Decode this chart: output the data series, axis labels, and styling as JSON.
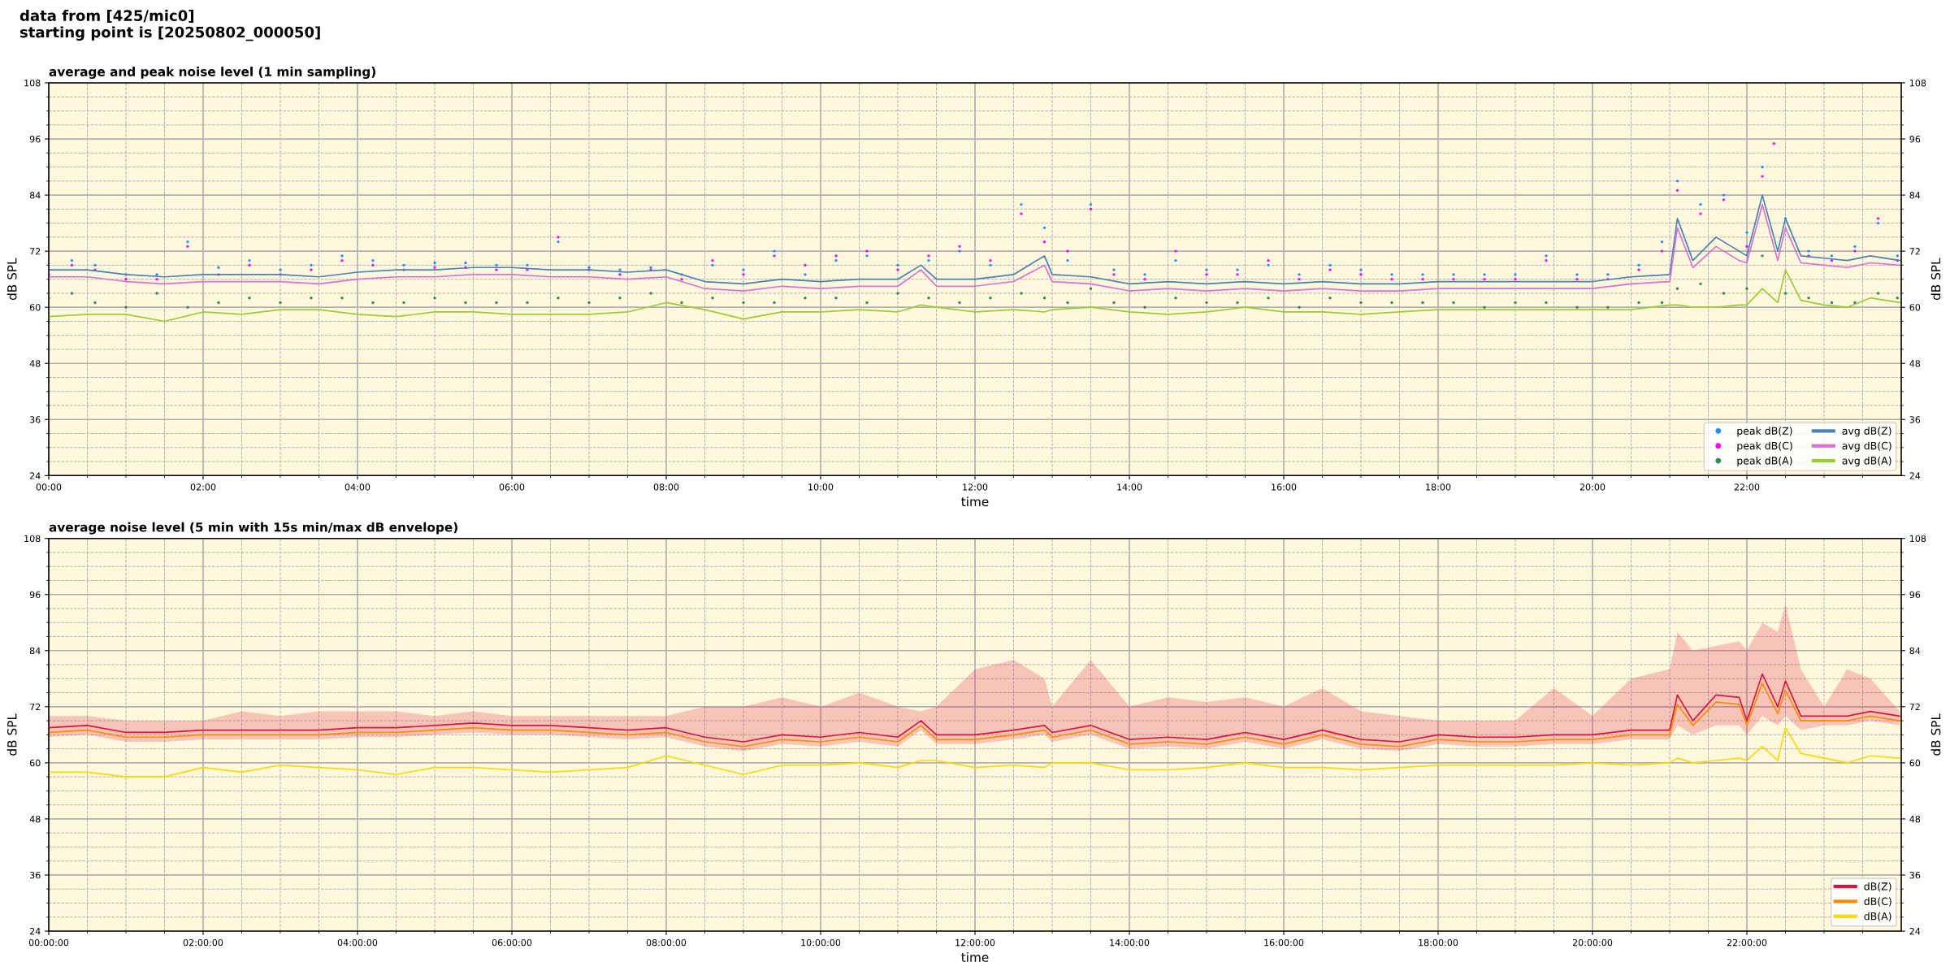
{
  "chart_data": [
    {
      "type": "line",
      "title": "average and peak noise level (1 min sampling)",
      "annotations": [
        "data from [425/mic0]",
        "starting point is [20250802_000050]"
      ],
      "xlabel": "time",
      "ylabel": "dB SPL",
      "y2label": "dB SPL",
      "grid": true,
      "legend": "bottom right",
      "xlim": [
        0,
        24
      ],
      "ylim": [
        24,
        108
      ],
      "y2lim": [
        24,
        108
      ],
      "xticks": [
        {
          "value": 0,
          "label": "00:00"
        },
        {
          "value": 2,
          "label": "02:00"
        },
        {
          "value": 4,
          "label": "04:00"
        },
        {
          "value": 6,
          "label": "06:00"
        },
        {
          "value": 8,
          "label": "08:00"
        },
        {
          "value": 10,
          "label": "10:00"
        },
        {
          "value": 12,
          "label": "12:00"
        },
        {
          "value": 14,
          "label": "14:00"
        },
        {
          "value": 16,
          "label": "16:00"
        },
        {
          "value": 18,
          "label": "18:00"
        },
        {
          "value": 20,
          "label": "20:00"
        },
        {
          "value": 22,
          "label": "22:00"
        },
        {
          "value": 0.5,
          "label": null
        },
        {
          "value": 1,
          "label": null
        },
        {
          "value": 1.5,
          "label": null
        },
        {
          "value": 2.5,
          "label": null
        },
        {
          "value": 3,
          "label": null
        },
        {
          "value": 3.5,
          "label": null
        },
        {
          "value": 4.5,
          "label": null
        },
        {
          "value": 5,
          "label": null
        },
        {
          "value": 5.5,
          "label": null
        },
        {
          "value": 6.5,
          "label": null
        },
        {
          "value": 7,
          "label": null
        },
        {
          "value": 7.5,
          "label": null
        },
        {
          "value": 8.5,
          "label": null
        },
        {
          "value": 9,
          "label": null
        },
        {
          "value": 9.5,
          "label": null
        },
        {
          "value": 10.5,
          "label": null
        },
        {
          "value": 11,
          "label": null
        },
        {
          "value": 11.5,
          "label": null
        },
        {
          "value": 12.5,
          "label": null
        },
        {
          "value": 13,
          "label": null
        },
        {
          "value": 13.5,
          "label": null
        },
        {
          "value": 14.5,
          "label": null
        },
        {
          "value": 15,
          "label": null
        },
        {
          "value": 15.5,
          "label": null
        },
        {
          "value": 16.5,
          "label": null
        },
        {
          "value": 17,
          "label": null
        },
        {
          "value": 17.5,
          "label": null
        },
        {
          "value": 18.5,
          "label": null
        },
        {
          "value": 19,
          "label": null
        },
        {
          "value": 19.5,
          "label": null
        },
        {
          "value": 20.5,
          "label": null
        },
        {
          "value": 21,
          "label": null
        },
        {
          "value": 21.5,
          "label": null
        },
        {
          "value": 22.5,
          "label": null
        },
        {
          "value": 23,
          "label": null
        },
        {
          "value": 23.5,
          "label": null
        }
      ],
      "yticks": [
        24,
        36,
        48,
        60,
        72,
        84,
        96,
        108,
        {
          "value": 27,
          "label": null
        },
        {
          "value": 30,
          "label": null
        },
        {
          "value": 33,
          "label": null
        },
        {
          "value": 39,
          "label": null
        },
        {
          "value": 42,
          "label": null
        },
        {
          "value": 45,
          "label": null
        },
        {
          "value": 51,
          "label": null
        },
        {
          "value": 54,
          "label": null
        },
        {
          "value": 57,
          "label": null
        },
        {
          "value": 63,
          "label": null
        },
        {
          "value": 66,
          "label": null
        },
        {
          "value": 69,
          "label": null
        },
        {
          "value": 75,
          "label": null
        },
        {
          "value": 78,
          "label": null
        },
        {
          "value": 81,
          "label": null
        },
        {
          "value": 87,
          "label": null
        },
        {
          "value": 90,
          "label": null
        },
        {
          "value": 93,
          "label": null
        },
        {
          "value": 99,
          "label": null
        },
        {
          "value": 102,
          "label": null
        },
        {
          "value": 105,
          "label": null
        }
      ],
      "y2ticks": [
        24,
        36,
        48,
        60,
        72,
        84,
        96,
        108
      ],
      "series": [
        {
          "name": "peak dB(Z)",
          "type": "scatter",
          "marker": "circle",
          "color": "#1e90ff",
          "x": [
            0,
            0.3,
            0.6,
            1,
            1.4,
            1.8,
            2.2,
            2.6,
            3,
            3.4,
            3.8,
            4.2,
            4.6,
            5,
            5.4,
            5.8,
            6.2,
            6.6,
            7,
            7.4,
            7.8,
            8.2,
            8.6,
            9,
            9.4,
            9.8,
            10.2,
            10.6,
            11,
            11.4,
            11.8,
            12.2,
            12.6,
            12.9,
            13.2,
            13.5,
            13.8,
            14.2,
            14.6,
            15,
            15.4,
            15.8,
            16.2,
            16.6,
            17,
            17.4,
            17.8,
            18.2,
            18.6,
            19,
            19.4,
            19.8,
            20.2,
            20.6,
            20.9,
            21.1,
            21.4,
            21.7,
            22.0,
            22.2,
            22.5,
            22.8,
            23.1,
            23.4,
            23.7,
            23.95
          ],
          "values": [
            68,
            70,
            69,
            67,
            67,
            74,
            68.5,
            70,
            68,
            69,
            71,
            70,
            69,
            69.5,
            69.5,
            69,
            69,
            74,
            68.5,
            68,
            68.5,
            67,
            69,
            68,
            72,
            67,
            70,
            71,
            69,
            70,
            72,
            69,
            82,
            77,
            70,
            82,
            68,
            67,
            70,
            68,
            68,
            69,
            67,
            69,
            68,
            67,
            67,
            67,
            67,
            67,
            71,
            67,
            67,
            69,
            74,
            87,
            82,
            84,
            76,
            90,
            79,
            72,
            71,
            73,
            78,
            71
          ]
        },
        {
          "name": "peak dB(C)",
          "type": "scatter",
          "marker": "circle",
          "color": "#ff00ff",
          "x": [
            0,
            0.3,
            0.6,
            1,
            1.4,
            1.8,
            2.2,
            2.6,
            3,
            3.4,
            3.8,
            4.2,
            4.6,
            5,
            5.4,
            5.8,
            6.2,
            6.6,
            7,
            7.4,
            7.8,
            8.2,
            8.6,
            9,
            9.4,
            9.8,
            10.2,
            10.6,
            11,
            11.4,
            11.8,
            12.2,
            12.6,
            12.9,
            13.2,
            13.5,
            13.8,
            14.2,
            14.6,
            15,
            15.4,
            15.8,
            16.2,
            16.6,
            17,
            17.4,
            17.8,
            18.2,
            18.6,
            19,
            19.4,
            19.8,
            20.2,
            20.6,
            20.9,
            21.1,
            21.4,
            21.7,
            22.0,
            22.2,
            22.35,
            22.8,
            23.1,
            23.4,
            23.7,
            23.95
          ],
          "values": [
            67,
            69,
            68,
            66,
            66,
            73,
            67,
            69,
            67,
            68,
            70,
            69,
            68,
            68.5,
            68.5,
            68,
            68,
            75,
            68,
            67,
            68,
            66,
            70,
            67,
            71,
            69,
            71,
            72,
            68,
            71,
            73,
            70,
            80,
            74,
            72,
            81,
            67,
            66,
            72,
            67,
            67,
            70,
            66,
            68,
            67,
            66,
            66,
            66,
            66,
            66,
            70,
            66,
            66,
            68,
            72,
            85,
            80,
            83,
            73,
            88,
            95,
            71,
            70,
            72,
            79,
            70
          ]
        },
        {
          "name": "peak dB(A)",
          "type": "scatter",
          "marker": "circle",
          "color": "#2e8b57",
          "x": [
            0,
            0.3,
            0.6,
            1,
            1.4,
            1.8,
            2.2,
            2.6,
            3,
            3.4,
            3.8,
            4.2,
            4.6,
            5,
            5.4,
            5.8,
            6.2,
            6.6,
            7,
            7.4,
            7.8,
            8.2,
            8.6,
            9,
            9.4,
            9.8,
            10.2,
            10.6,
            11,
            11.4,
            11.8,
            12.2,
            12.6,
            12.9,
            13.2,
            13.5,
            13.8,
            14.2,
            14.6,
            15,
            15.4,
            15.8,
            16.2,
            16.6,
            17,
            17.4,
            17.8,
            18.2,
            18.6,
            19,
            19.4,
            19.8,
            20.2,
            20.6,
            20.9,
            21.1,
            21.4,
            21.7,
            22.0,
            22.2,
            22.5,
            22.8,
            23.1,
            23.4,
            23.7,
            23.95
          ],
          "values": [
            62,
            63,
            61,
            60,
            63,
            60,
            61,
            62,
            61,
            62,
            62,
            61,
            61,
            62,
            61,
            61,
            61,
            62,
            61,
            62,
            63,
            61,
            62,
            61,
            61,
            62,
            62,
            61,
            63,
            62,
            61,
            62,
            63,
            62,
            61,
            64,
            61,
            60,
            62,
            61,
            61,
            62,
            60,
            62,
            61,
            61,
            61,
            61,
            60,
            61,
            61,
            60,
            60,
            61,
            61,
            64,
            65,
            63,
            64,
            71,
            63,
            62,
            61,
            61,
            63,
            62
          ]
        },
        {
          "name": "avg dB(Z)",
          "color": "#4682b4",
          "x": [
            0,
            0.5,
            1,
            1.5,
            2,
            2.5,
            3,
            3.5,
            4,
            4.5,
            5,
            5.5,
            6,
            6.5,
            7,
            7.5,
            8,
            8.5,
            9,
            9.5,
            10,
            10.5,
            11,
            11.3,
            11.5,
            12,
            12.5,
            12.9,
            13,
            13.5,
            14,
            14.5,
            15,
            15.5,
            16,
            16.5,
            17,
            17.5,
            18,
            18.5,
            19,
            19.5,
            20,
            20.5,
            21,
            21.1,
            21.3,
            21.6,
            21.9,
            22,
            22.2,
            22.4,
            22.5,
            22.7,
            23,
            23.3,
            23.6,
            23.98
          ],
          "values": [
            68,
            68,
            67,
            66.5,
            67,
            67,
            67,
            66.5,
            67.5,
            68,
            68,
            68.5,
            68.5,
            68,
            68,
            67.5,
            68,
            65.5,
            65,
            66,
            65.5,
            66,
            66,
            69,
            66,
            66,
            67,
            71,
            67,
            66.5,
            65,
            65.5,
            65,
            65.5,
            65,
            65.5,
            65,
            65,
            65.5,
            65.5,
            65.5,
            65.5,
            65.5,
            66.5,
            67,
            79,
            70,
            75,
            72,
            71,
            84,
            72,
            79,
            71,
            70.5,
            70,
            71,
            70
          ]
        },
        {
          "name": "avg dB(C)",
          "color": "#da70d6",
          "x": [
            0,
            0.5,
            1,
            1.5,
            2,
            2.5,
            3,
            3.5,
            4,
            4.5,
            5,
            5.5,
            6,
            6.5,
            7,
            7.5,
            8,
            8.5,
            9,
            9.5,
            10,
            10.5,
            11,
            11.3,
            11.5,
            12,
            12.5,
            12.9,
            13,
            13.5,
            14,
            14.5,
            15,
            15.5,
            16,
            16.5,
            17,
            17.5,
            18,
            18.5,
            19,
            19.5,
            20,
            20.5,
            21,
            21.1,
            21.3,
            21.6,
            21.9,
            22,
            22.2,
            22.4,
            22.5,
            22.7,
            23,
            23.3,
            23.6,
            23.98
          ],
          "values": [
            66.5,
            66.5,
            65.5,
            65,
            65.5,
            65.5,
            65.5,
            65,
            66,
            66.5,
            66.5,
            67,
            67,
            66.5,
            66.5,
            66,
            66.5,
            64,
            63.5,
            64.5,
            64,
            64.5,
            64.5,
            68,
            64.5,
            64.5,
            65.5,
            69,
            65.5,
            65,
            63.5,
            64,
            63.5,
            64,
            63.5,
            64,
            63.5,
            63.5,
            64,
            64,
            64,
            64,
            64,
            65,
            65.5,
            77,
            68.5,
            73,
            70,
            69.5,
            82,
            70,
            77,
            69.5,
            69,
            68.5,
            69.5,
            69
          ]
        },
        {
          "name": "avg dB(A)",
          "color": "#9acd32",
          "x": [
            0,
            0.5,
            1,
            1.5,
            2,
            2.5,
            3,
            3.5,
            4,
            4.5,
            5,
            5.5,
            6,
            6.5,
            7,
            7.5,
            8,
            8.5,
            9,
            9.5,
            10,
            10.5,
            11,
            11.3,
            11.5,
            12,
            12.5,
            12.9,
            13,
            13.5,
            14,
            14.5,
            15,
            15.5,
            16,
            16.5,
            17,
            17.5,
            18,
            18.5,
            19,
            19.5,
            20,
            20.5,
            21,
            21.1,
            21.3,
            21.6,
            21.9,
            22,
            22.2,
            22.4,
            22.5,
            22.7,
            23,
            23.3,
            23.6,
            23.98
          ],
          "values": [
            58,
            58.5,
            58.5,
            57,
            59,
            58.5,
            59.5,
            59.5,
            58.5,
            58,
            59,
            59,
            58.5,
            58.5,
            58.5,
            59,
            61,
            59.5,
            57.5,
            59,
            59,
            59.5,
            59,
            60.5,
            60,
            59,
            59.5,
            59,
            59.5,
            60,
            59,
            58.5,
            59,
            60,
            59,
            59,
            58.5,
            59,
            59.5,
            59.5,
            59.5,
            59.5,
            59.5,
            59.5,
            60.5,
            60.5,
            60,
            60,
            60.5,
            60.5,
            64,
            61,
            68,
            61.5,
            60.5,
            60,
            62,
            61
          ]
        }
      ]
    },
    {
      "type": "line",
      "title": "average noise level (5 min with 15s min/max dB envelope)",
      "xlabel": "time",
      "ylabel": "dB SPL",
      "y2label": "dB SPL",
      "grid": true,
      "legend": "bottom right",
      "xlim": [
        0,
        24
      ],
      "ylim": [
        24,
        108
      ],
      "y2lim": [
        24,
        108
      ],
      "xticks": [
        {
          "value": 0,
          "label": "00:00:00"
        },
        {
          "value": 2,
          "label": "02:00:00"
        },
        {
          "value": 4,
          "label": "04:00:00"
        },
        {
          "value": 6,
          "label": "06:00:00"
        },
        {
          "value": 8,
          "label": "08:00:00"
        },
        {
          "value": 10,
          "label": "10:00:00"
        },
        {
          "value": 12,
          "label": "12:00:00"
        },
        {
          "value": 14,
          "label": "14:00:00"
        },
        {
          "value": 16,
          "label": "16:00:00"
        },
        {
          "value": 18,
          "label": "18:00:00"
        },
        {
          "value": 20,
          "label": "20:00:00"
        },
        {
          "value": 22,
          "label": "22:00:00"
        },
        {
          "value": 0.5,
          "label": null
        },
        {
          "value": 1,
          "label": null
        },
        {
          "value": 1.5,
          "label": null
        },
        {
          "value": 2.5,
          "label": null
        },
        {
          "value": 3,
          "label": null
        },
        {
          "value": 3.5,
          "label": null
        },
        {
          "value": 4.5,
          "label": null
        },
        {
          "value": 5,
          "label": null
        },
        {
          "value": 5.5,
          "label": null
        },
        {
          "value": 6.5,
          "label": null
        },
        {
          "value": 7,
          "label": null
        },
        {
          "value": 7.5,
          "label": null
        },
        {
          "value": 8.5,
          "label": null
        },
        {
          "value": 9,
          "label": null
        },
        {
          "value": 9.5,
          "label": null
        },
        {
          "value": 10.5,
          "label": null
        },
        {
          "value": 11,
          "label": null
        },
        {
          "value": 11.5,
          "label": null
        },
        {
          "value": 12.5,
          "label": null
        },
        {
          "value": 13,
          "label": null
        },
        {
          "value": 13.5,
          "label": null
        },
        {
          "value": 14.5,
          "label": null
        },
        {
          "value": 15,
          "label": null
        },
        {
          "value": 15.5,
          "label": null
        },
        {
          "value": 16.5,
          "label": null
        },
        {
          "value": 17,
          "label": null
        },
        {
          "value": 17.5,
          "label": null
        },
        {
          "value": 18.5,
          "label": null
        },
        {
          "value": 19,
          "label": null
        },
        {
          "value": 19.5,
          "label": null
        },
        {
          "value": 20.5,
          "label": null
        },
        {
          "value": 21,
          "label": null
        },
        {
          "value": 21.5,
          "label": null
        },
        {
          "value": 22.5,
          "label": null
        },
        {
          "value": 23,
          "label": null
        },
        {
          "value": 23.5,
          "label": null
        }
      ],
      "yticks": [
        24,
        36,
        48,
        60,
        72,
        84,
        96,
        108,
        {
          "value": 27,
          "label": null
        },
        {
          "value": 30,
          "label": null
        },
        {
          "value": 33,
          "label": null
        },
        {
          "value": 39,
          "label": null
        },
        {
          "value": 42,
          "label": null
        },
        {
          "value": 45,
          "label": null
        },
        {
          "value": 51,
          "label": null
        },
        {
          "value": 54,
          "label": null
        },
        {
          "value": 57,
          "label": null
        },
        {
          "value": 63,
          "label": null
        },
        {
          "value": 66,
          "label": null
        },
        {
          "value": 69,
          "label": null
        },
        {
          "value": 75,
          "label": null
        },
        {
          "value": 78,
          "label": null
        },
        {
          "value": 81,
          "label": null
        },
        {
          "value": 87,
          "label": null
        },
        {
          "value": 90,
          "label": null
        },
        {
          "value": 93,
          "label": null
        },
        {
          "value": 99,
          "label": null
        },
        {
          "value": 102,
          "label": null
        },
        {
          "value": 105,
          "label": null
        }
      ],
      "y2ticks": [
        24,
        36,
        48,
        60,
        72,
        84,
        96,
        108
      ],
      "series": [
        {
          "name": "dB(Z)",
          "color": "#dc143c",
          "x": [
            0,
            0.5,
            1,
            1.5,
            2,
            2.5,
            3,
            3.5,
            4,
            4.5,
            5,
            5.5,
            6,
            6.5,
            7,
            7.5,
            8,
            8.5,
            9,
            9.5,
            10,
            10.5,
            11,
            11.3,
            11.5,
            12,
            12.5,
            12.9,
            13,
            13.5,
            14,
            14.5,
            15,
            15.5,
            16,
            16.5,
            17,
            17.5,
            18,
            18.5,
            19,
            19.5,
            20,
            20.5,
            21,
            21.1,
            21.3,
            21.6,
            21.9,
            22,
            22.2,
            22.4,
            22.5,
            22.7,
            23,
            23.3,
            23.6,
            23.98
          ],
          "values": [
            67.5,
            68,
            66.5,
            66.5,
            67,
            67,
            67,
            67,
            67.5,
            67.5,
            68,
            68.5,
            68,
            68,
            67.5,
            67,
            67.5,
            65.5,
            64.5,
            66,
            65.5,
            66.5,
            65.5,
            69,
            66,
            66,
            67,
            68,
            66.5,
            68,
            65,
            65.5,
            65,
            66.5,
            65,
            67,
            65,
            64.5,
            66,
            65.5,
            65.5,
            66,
            66,
            67,
            67,
            74.5,
            69,
            74.5,
            74,
            69,
            79,
            72,
            77.5,
            70,
            70,
            70,
            71,
            70
          ],
          "lower": [
            65.5,
            66,
            64.5,
            64.5,
            65,
            65,
            65,
            65,
            65.5,
            65.5,
            66,
            66.5,
            66,
            66,
            65.5,
            65,
            65.5,
            63.5,
            62.5,
            64,
            63.5,
            64.5,
            63.5,
            67,
            64,
            64,
            65,
            66,
            64.5,
            66,
            63,
            63.5,
            63,
            64.5,
            63,
            65,
            63,
            62.5,
            64,
            63.5,
            63.5,
            64,
            64,
            65,
            65,
            68,
            66,
            68,
            68,
            66,
            70,
            68,
            70,
            67,
            68,
            68,
            69,
            68
          ],
          "upper": [
            70,
            70,
            69,
            69,
            69,
            71,
            70,
            71,
            71,
            71,
            70,
            71,
            70,
            70,
            70,
            70,
            70,
            72,
            72,
            74,
            72,
            75,
            72,
            71,
            72,
            80,
            82,
            78,
            72,
            82,
            72,
            74,
            73,
            74,
            72,
            76,
            71,
            70,
            69,
            69,
            69,
            76,
            70,
            78,
            80,
            88,
            84,
            85,
            86,
            84,
            90,
            88,
            94,
            80,
            72,
            80,
            78,
            71
          ]
        },
        {
          "name": "dB(C)",
          "color": "#ff8c00",
          "x": [
            0,
            0.5,
            1,
            1.5,
            2,
            2.5,
            3,
            3.5,
            4,
            4.5,
            5,
            5.5,
            6,
            6.5,
            7,
            7.5,
            8,
            8.5,
            9,
            9.5,
            10,
            10.5,
            11,
            11.3,
            11.5,
            12,
            12.5,
            12.9,
            13,
            13.5,
            14,
            14.5,
            15,
            15.5,
            16,
            16.5,
            17,
            17.5,
            18,
            18.5,
            19,
            19.5,
            20,
            20.5,
            21,
            21.1,
            21.3,
            21.6,
            21.9,
            22,
            22.2,
            22.4,
            22.5,
            22.7,
            23,
            23.3,
            23.6,
            23.98
          ],
          "values": [
            66.5,
            67,
            65.5,
            65.5,
            66,
            66,
            66,
            66,
            66.5,
            66.5,
            67,
            67.5,
            67,
            67,
            66.5,
            66,
            66.5,
            64.5,
            63.5,
            65,
            64.5,
            65.5,
            64.5,
            68,
            65,
            65,
            66,
            67,
            65.5,
            67,
            64,
            64.5,
            64,
            65.5,
            64,
            66,
            64,
            63.5,
            65,
            64.5,
            64.5,
            65,
            65,
            66,
            66,
            72.5,
            68,
            73,
            72.5,
            68,
            77,
            70.5,
            75.5,
            69,
            69,
            69,
            70,
            69
          ]
        },
        {
          "name": "dB(A)",
          "color": "#ffd700",
          "x": [
            0,
            0.5,
            1,
            1.5,
            2,
            2.5,
            3,
            3.5,
            4,
            4.5,
            5,
            5.5,
            6,
            6.5,
            7,
            7.5,
            8,
            8.5,
            9,
            9.5,
            10,
            10.5,
            11,
            11.3,
            11.5,
            12,
            12.5,
            12.9,
            13,
            13.5,
            14,
            14.5,
            15,
            15.5,
            16,
            16.5,
            17,
            17.5,
            18,
            18.5,
            19,
            19.5,
            20,
            20.5,
            21,
            21.1,
            21.3,
            21.6,
            21.9,
            22,
            22.2,
            22.4,
            22.5,
            22.7,
            23,
            23.3,
            23.6,
            23.98
          ],
          "values": [
            58,
            58,
            57,
            57,
            59,
            58,
            59.5,
            59,
            58.5,
            57.5,
            59,
            59,
            58.5,
            58,
            58.5,
            59,
            61.5,
            59.5,
            57.5,
            59.5,
            59.5,
            60,
            59,
            60.5,
            60.5,
            59,
            59.5,
            59,
            60,
            60,
            58.5,
            58.5,
            59,
            60,
            59,
            59,
            58.5,
            59,
            59.5,
            59.5,
            59.5,
            59.5,
            60,
            59.5,
            60,
            61,
            60,
            60.5,
            61,
            60.5,
            63.5,
            60.5,
            67.5,
            62,
            61,
            60,
            61.5,
            61
          ]
        }
      ]
    }
  ]
}
